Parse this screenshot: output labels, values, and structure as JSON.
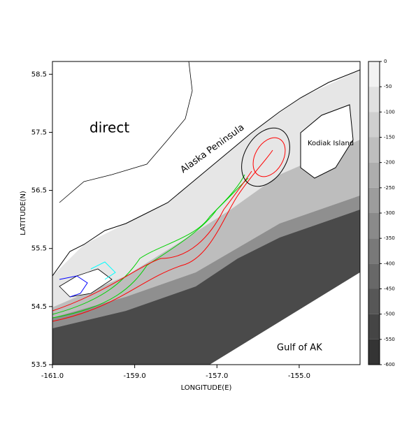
{
  "map": {
    "annotation": "direct",
    "place_labels": [
      "Alaska Peninsula",
      "Kodiak\nIsland",
      "Gulf of AK"
    ],
    "xlabel": "LONGITUDE(E)",
    "ylabel": "LATITUDE(N)",
    "xlim": [
      -161.0,
      -153.52
    ],
    "ylim": [
      53.5,
      58.72
    ],
    "xticks": [
      {
        "value": -161.0,
        "label": "-161.0"
      },
      {
        "value": -159.0,
        "label": "-159.0"
      },
      {
        "value": -157.0,
        "label": "-157.0"
      },
      {
        "value": -155.0,
        "label": "-155.0"
      }
    ],
    "yticks": [
      58.5,
      57.5,
      56.5,
      55.5,
      54.5,
      53.5
    ],
    "colorbar": {
      "lim": [
        0,
        -600
      ],
      "ticks": [
        0,
        -50,
        -100,
        -150,
        -200,
        -250,
        -300,
        -350,
        -400,
        -450,
        -500,
        -550,
        -600
      ]
    }
  }
}
